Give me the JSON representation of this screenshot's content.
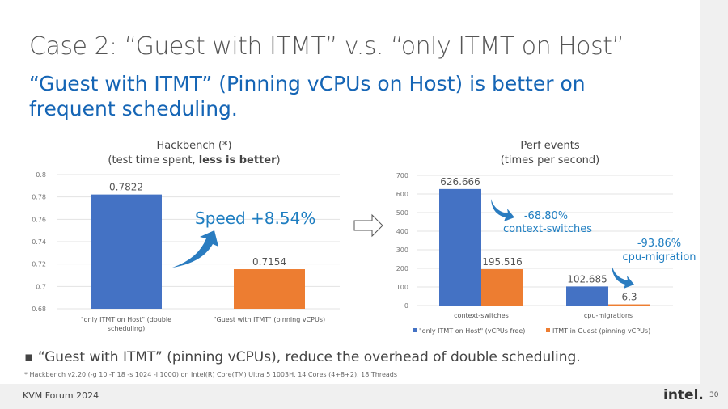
{
  "slide": {
    "title": "Case 2: “Guest with ITMT” v.s. “only ITMT on Host”",
    "subtitle": "“Guest with ITMT” (Pinning vCPUs on Host) is better on frequent scheduling.",
    "bullet": "“Guest with ITMT” (pinning vCPUs), reduce the overhead of double scheduling.",
    "footnote": "* Hackbench v2.20 (-g 10 -T 18 -s 1024 -l 1000) on Intel(R) Core(TM) Ultra 5 1003H, 14 Cores (4+8+2), 18 Threads",
    "footer": "KVM Forum 2024",
    "logo": "intel.",
    "page_number": "30"
  },
  "colors": {
    "blue": "#4472c4",
    "orange": "#ed7d31",
    "accent": "#1f7ec1"
  },
  "chart_data": [
    {
      "type": "bar",
      "title": "Hackbench (*)",
      "subtitle_plain": "(test time spent, ",
      "subtitle_bold": "less is better",
      "categories": [
        "\"only ITMT on Host\" (double scheduling)",
        "\"Guest with ITMT\" (pinning vCPUs)"
      ],
      "values": [
        0.7822,
        0.7154
      ],
      "value_labels": [
        "0.7822",
        "0.7154"
      ],
      "ylim": [
        0.68,
        0.8
      ],
      "yticks": [
        "0.68",
        "0.7",
        "0.72",
        "0.74",
        "0.76",
        "0.78",
        "0.8"
      ],
      "grid": true,
      "annotation": "Speed +8.54%"
    },
    {
      "type": "bar",
      "title": "Perf events",
      "subtitle": "(times per second)",
      "categories": [
        "context-switches",
        "cpu-migrations"
      ],
      "series": [
        {
          "name": "\"only ITMT on Host\" (vCPUs free)",
          "values": [
            626.666,
            102.685
          ],
          "labels": [
            "626.666",
            "102.685"
          ]
        },
        {
          "name": "ITMT in Guest (pinning vCPUs)",
          "values": [
            195.516,
            6.3
          ],
          "labels": [
            "195.516",
            "6.3"
          ]
        }
      ],
      "ylim": [
        0,
        700
      ],
      "yticks": [
        "0",
        "100",
        "200",
        "300",
        "400",
        "500",
        "600",
        "700"
      ],
      "grid": true,
      "legend": "bottom",
      "annotations": [
        {
          "pct": "-68.80%",
          "label": "context-switches"
        },
        {
          "pct": "-93.86%",
          "label": "cpu-migration"
        }
      ]
    }
  ]
}
